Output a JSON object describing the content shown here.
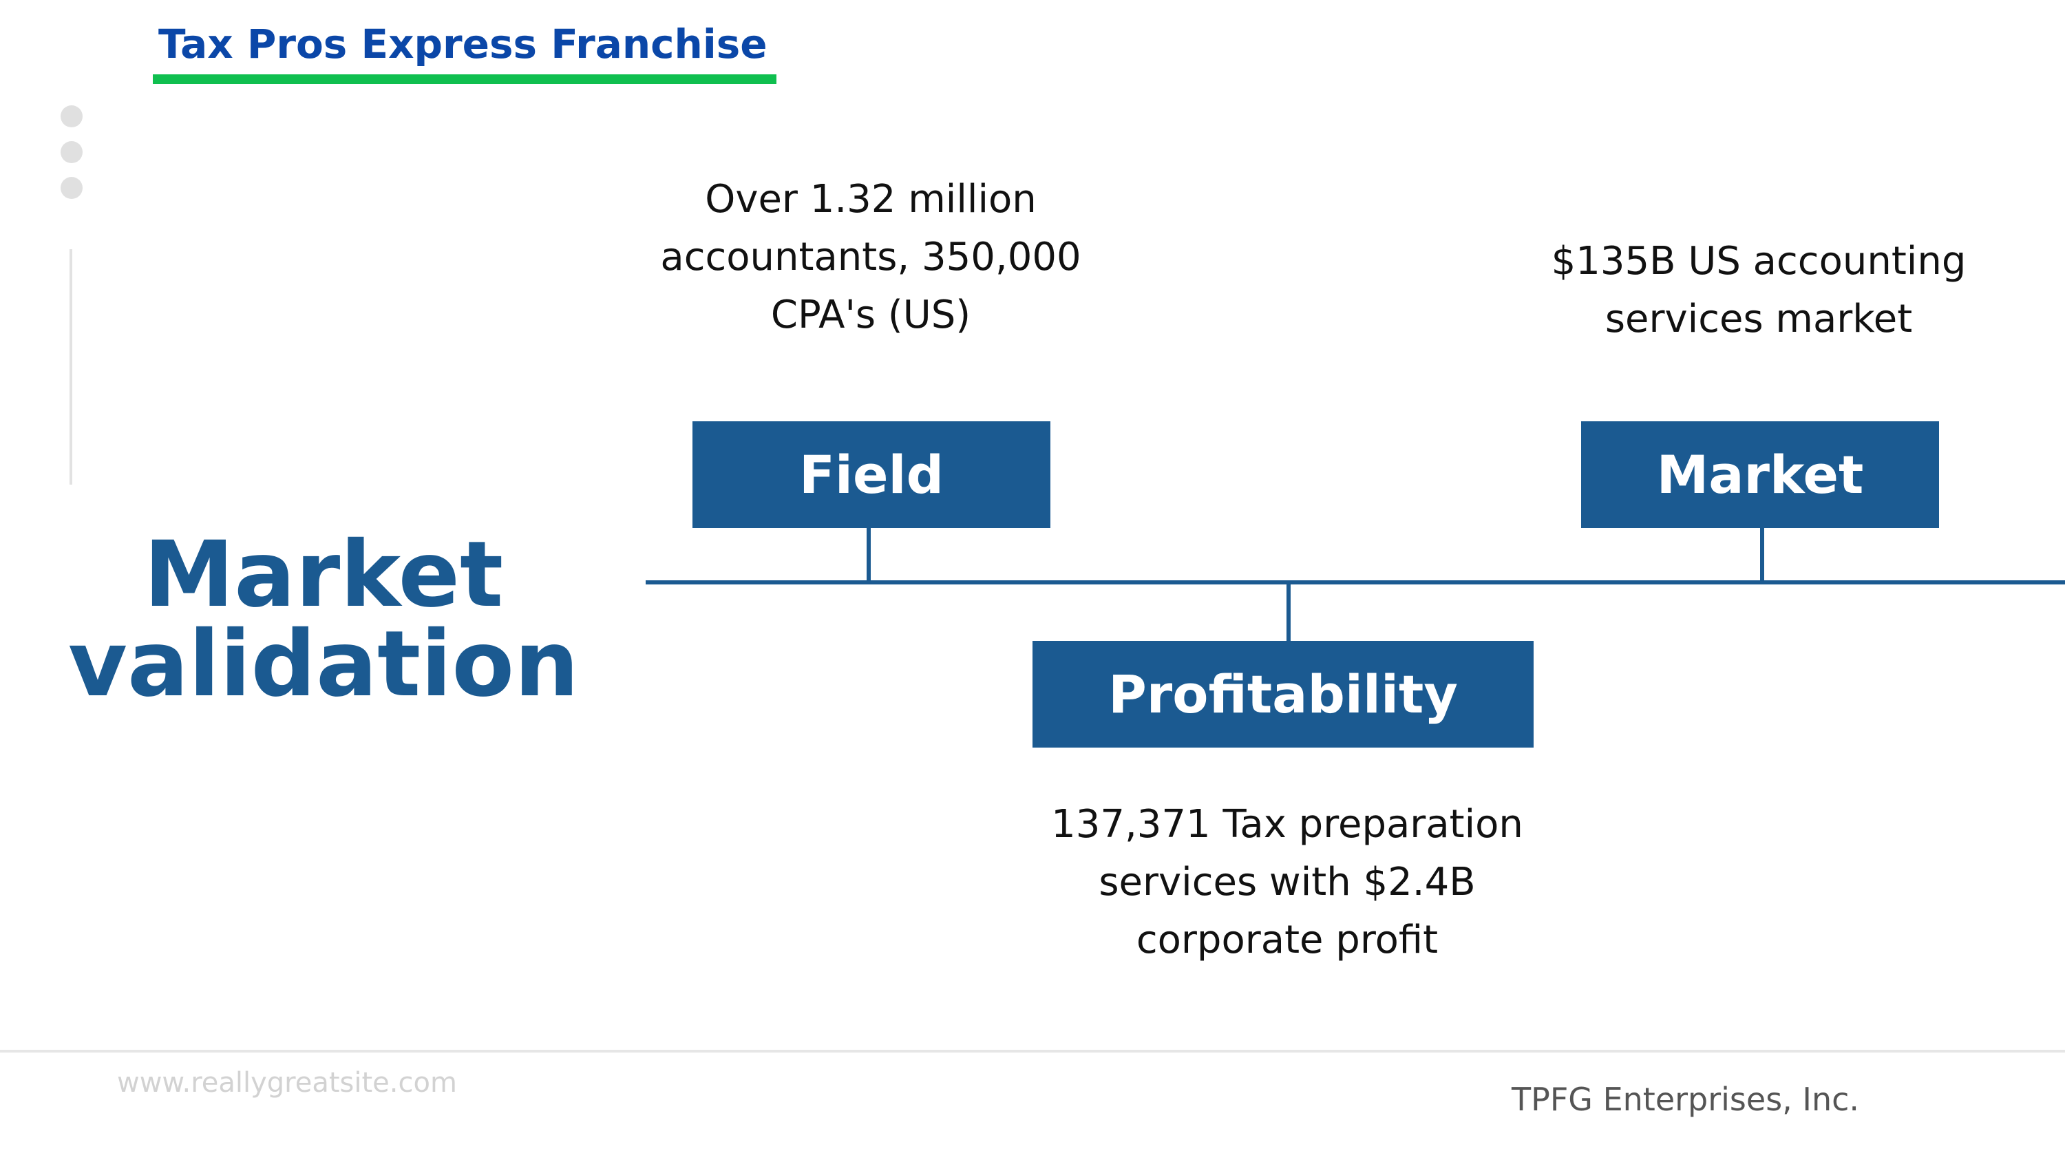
{
  "header": {
    "brand": "Tax Pros Express Franchise"
  },
  "slide": {
    "title_line1": "Market",
    "title_line2": "validation"
  },
  "timeline": {
    "nodes": [
      {
        "label": "Field",
        "description": [
          "Over 1.32 million",
          "accountants, 350,000",
          "CPA's (US)"
        ]
      },
      {
        "label": "Profitability",
        "description": [
          "137,371 Tax preparation",
          "services with $2.4B",
          "corporate profit"
        ]
      },
      {
        "label": "Market",
        "description": [
          "$135B US accounting",
          "services market"
        ]
      }
    ]
  },
  "footer": {
    "website": "www.reallygreatsite.com",
    "company": "TPFG Enterprises, Inc."
  },
  "colors": {
    "brand_blue": "#0b47a8",
    "accent_green": "#0fbf4f",
    "primary_blue": "#1b5a91"
  }
}
